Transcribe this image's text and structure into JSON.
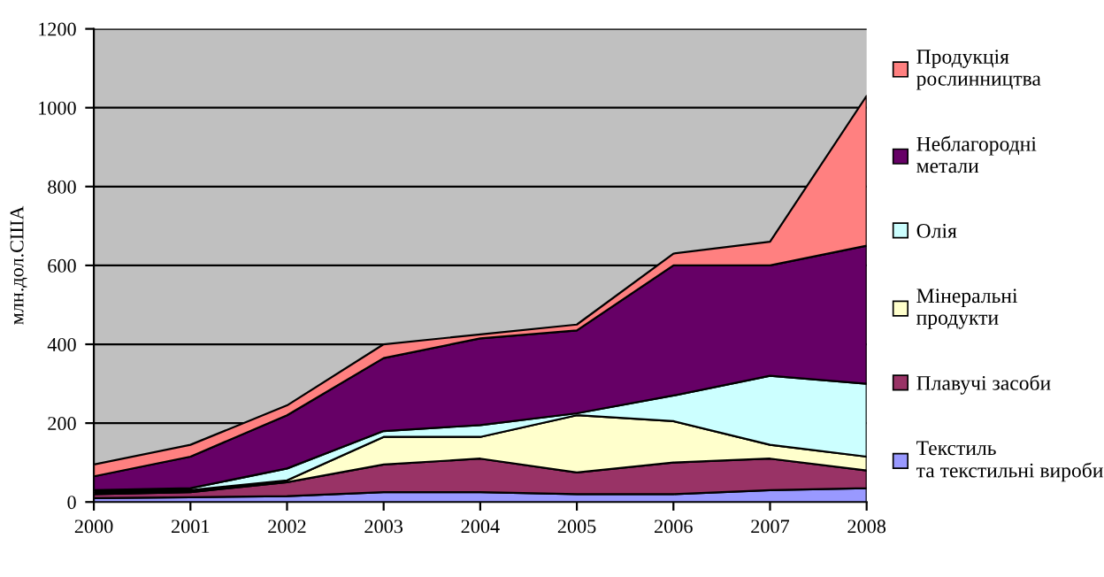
{
  "chart_data": {
    "type": "area",
    "stacked": true,
    "ylabel": "млн.дол.США",
    "x": [
      2000,
      2001,
      2002,
      2003,
      2004,
      2005,
      2006,
      2007,
      2008
    ],
    "xlim": [
      2000,
      2008
    ],
    "xticks": [
      2000,
      2001,
      2002,
      2003,
      2004,
      2005,
      2006,
      2007,
      2008
    ],
    "ylim": [
      0,
      1200
    ],
    "yticks": [
      0,
      200,
      400,
      600,
      800,
      1000,
      1200
    ],
    "grid": "y",
    "legend": "right",
    "series": [
      {
        "name": "Текстиль та текстильні вироби",
        "color": "#9999ff",
        "values": [
          10,
          12,
          15,
          25,
          25,
          20,
          20,
          30,
          35
        ]
      },
      {
        "name": "Плавучі засоби",
        "color": "#993366",
        "values": [
          10,
          13,
          35,
          70,
          85,
          55,
          80,
          80,
          45
        ]
      },
      {
        "name": "Мінеральні продукти",
        "color": "#ffffcc",
        "values": [
          5,
          5,
          5,
          70,
          55,
          145,
          105,
          35,
          35
        ]
      },
      {
        "name": "Олія",
        "color": "#ccffff",
        "values": [
          5,
          5,
          30,
          15,
          30,
          5,
          65,
          175,
          185
        ]
      },
      {
        "name": "Неблагородні метали",
        "color": "#660066",
        "values": [
          35,
          80,
          135,
          185,
          220,
          210,
          330,
          280,
          350
        ]
      },
      {
        "name": "Продукція рослинництва",
        "color": "#ff8080",
        "values": [
          30,
          30,
          25,
          35,
          10,
          15,
          30,
          60,
          380
        ]
      }
    ]
  }
}
